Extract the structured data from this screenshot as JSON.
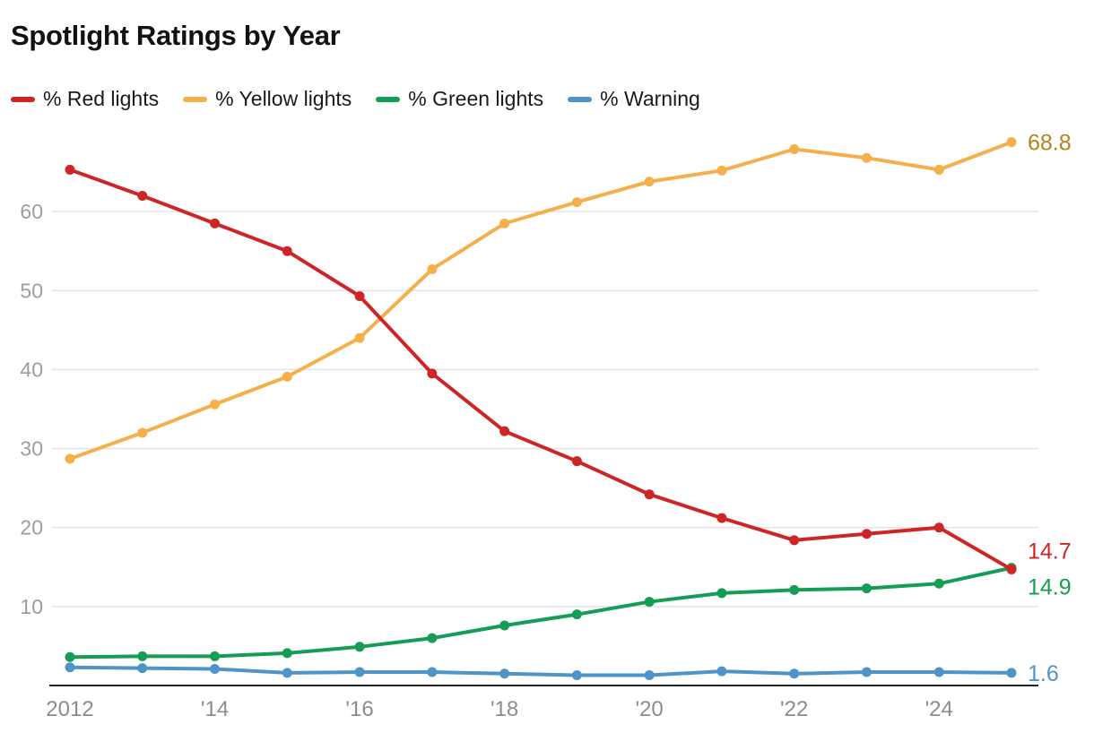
{
  "chart": {
    "title": "Spotlight Ratings by Year"
  },
  "chart_data": {
    "type": "line",
    "title": "Spotlight Ratings by Year",
    "x": [
      2012,
      2013,
      2014,
      2015,
      2016,
      2017,
      2018,
      2019,
      2020,
      2021,
      2022,
      2023,
      2024,
      2025
    ],
    "x_ticks": [
      2012,
      2014,
      2016,
      2018,
      2020,
      2022,
      2024
    ],
    "x_tick_labels": [
      "2012",
      "'14",
      "'16",
      "'18",
      "'20",
      "'22",
      "'24"
    ],
    "y_ticks": [
      10,
      20,
      30,
      40,
      50,
      60
    ],
    "ylim": [
      0,
      70
    ],
    "grid": true,
    "legend_position": "top",
    "series": [
      {
        "name": "% Red lights",
        "color": "#ce2527",
        "label_color": "#ce2527",
        "end_label": "14.7",
        "values": [
          65.3,
          62.0,
          58.5,
          55.0,
          49.3,
          39.5,
          32.2,
          28.4,
          24.2,
          21.2,
          18.4,
          19.2,
          20.0,
          14.7
        ]
      },
      {
        "name": "% Yellow lights",
        "color": "#f3b04b",
        "label_color": "#b3831d",
        "end_label": "68.8",
        "values": [
          28.7,
          32.0,
          35.6,
          39.1,
          44.0,
          52.7,
          58.5,
          61.2,
          63.8,
          65.2,
          67.9,
          66.8,
          65.3,
          68.8
        ]
      },
      {
        "name": "% Green lights",
        "color": "#159d56",
        "label_color": "#159d56",
        "end_label": "14.9",
        "values": [
          3.6,
          3.7,
          3.7,
          4.1,
          4.9,
          6.0,
          7.6,
          9.0,
          10.6,
          11.7,
          12.1,
          12.3,
          12.9,
          14.9
        ]
      },
      {
        "name": "% Warning",
        "color": "#4e94c8",
        "label_color": "#4e94c8",
        "end_label": "1.6",
        "values": [
          2.3,
          2.2,
          2.1,
          1.6,
          1.7,
          1.7,
          1.5,
          1.3,
          1.3,
          1.8,
          1.5,
          1.7,
          1.7,
          1.6
        ]
      }
    ],
    "axis_colors": {
      "grid": "#e4e4e4",
      "axis_line": "#222222",
      "y_tick_text": "#9d9d9d",
      "x_tick_text": "#8c8c8c"
    }
  }
}
